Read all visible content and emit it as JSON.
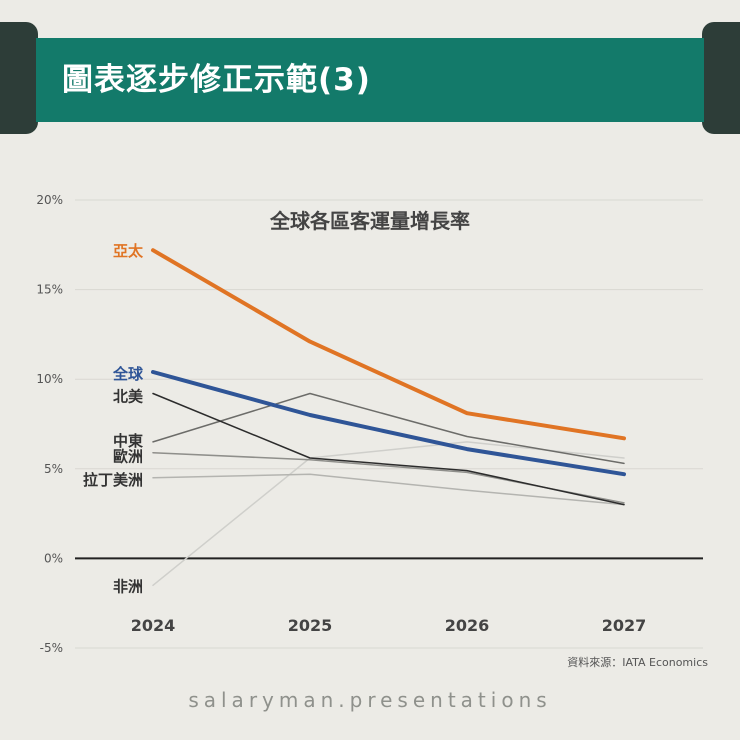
{
  "title": "圖表逐步修正示範(3)",
  "footer": "salaryman.presentations",
  "colors": {
    "background": "#ecebe6",
    "header": "#137a6a",
    "corner": "#2d3d38"
  },
  "chart_data": {
    "type": "line",
    "title": "全球各區客運量增長率",
    "x": [
      2024,
      2025,
      2026,
      2027
    ],
    "x_labels": [
      "2024",
      "2025",
      "2026",
      "2027"
    ],
    "y_ticks": [
      -5,
      0,
      5,
      10,
      15,
      20
    ],
    "y_labels": [
      "-5%",
      "0%",
      "5%",
      "10%",
      "15%",
      "20%"
    ],
    "ylim": [
      -5,
      20
    ],
    "grid": true,
    "source": "資料來源：IATA Economics",
    "series": [
      {
        "name": "非洲",
        "values": [
          -1.5,
          5.6,
          6.5,
          5.6
        ],
        "color": "#cfcfcb",
        "width": 1.5
      },
      {
        "name": "拉丁美洲",
        "values": [
          4.5,
          4.7,
          3.8,
          3.0
        ],
        "color": "#b4b4b0",
        "width": 1.5
      },
      {
        "name": "歐洲",
        "values": [
          5.9,
          5.5,
          4.8,
          3.1
        ],
        "color": "#8f8f8b",
        "width": 1.5
      },
      {
        "name": "中東",
        "values": [
          6.5,
          9.2,
          6.8,
          5.3
        ],
        "color": "#6c6c69",
        "width": 1.5
      },
      {
        "name": "北美",
        "values": [
          9.2,
          5.6,
          4.9,
          3.0
        ],
        "color": "#2c2c2c",
        "width": 1.5
      },
      {
        "name": "全球",
        "values": [
          10.4,
          8.0,
          6.1,
          4.7
        ],
        "color": "#2f5597",
        "width": 4
      },
      {
        "name": "亞太",
        "values": [
          17.2,
          12.1,
          8.1,
          6.7
        ],
        "color": "#e07424",
        "width": 4
      }
    ]
  }
}
